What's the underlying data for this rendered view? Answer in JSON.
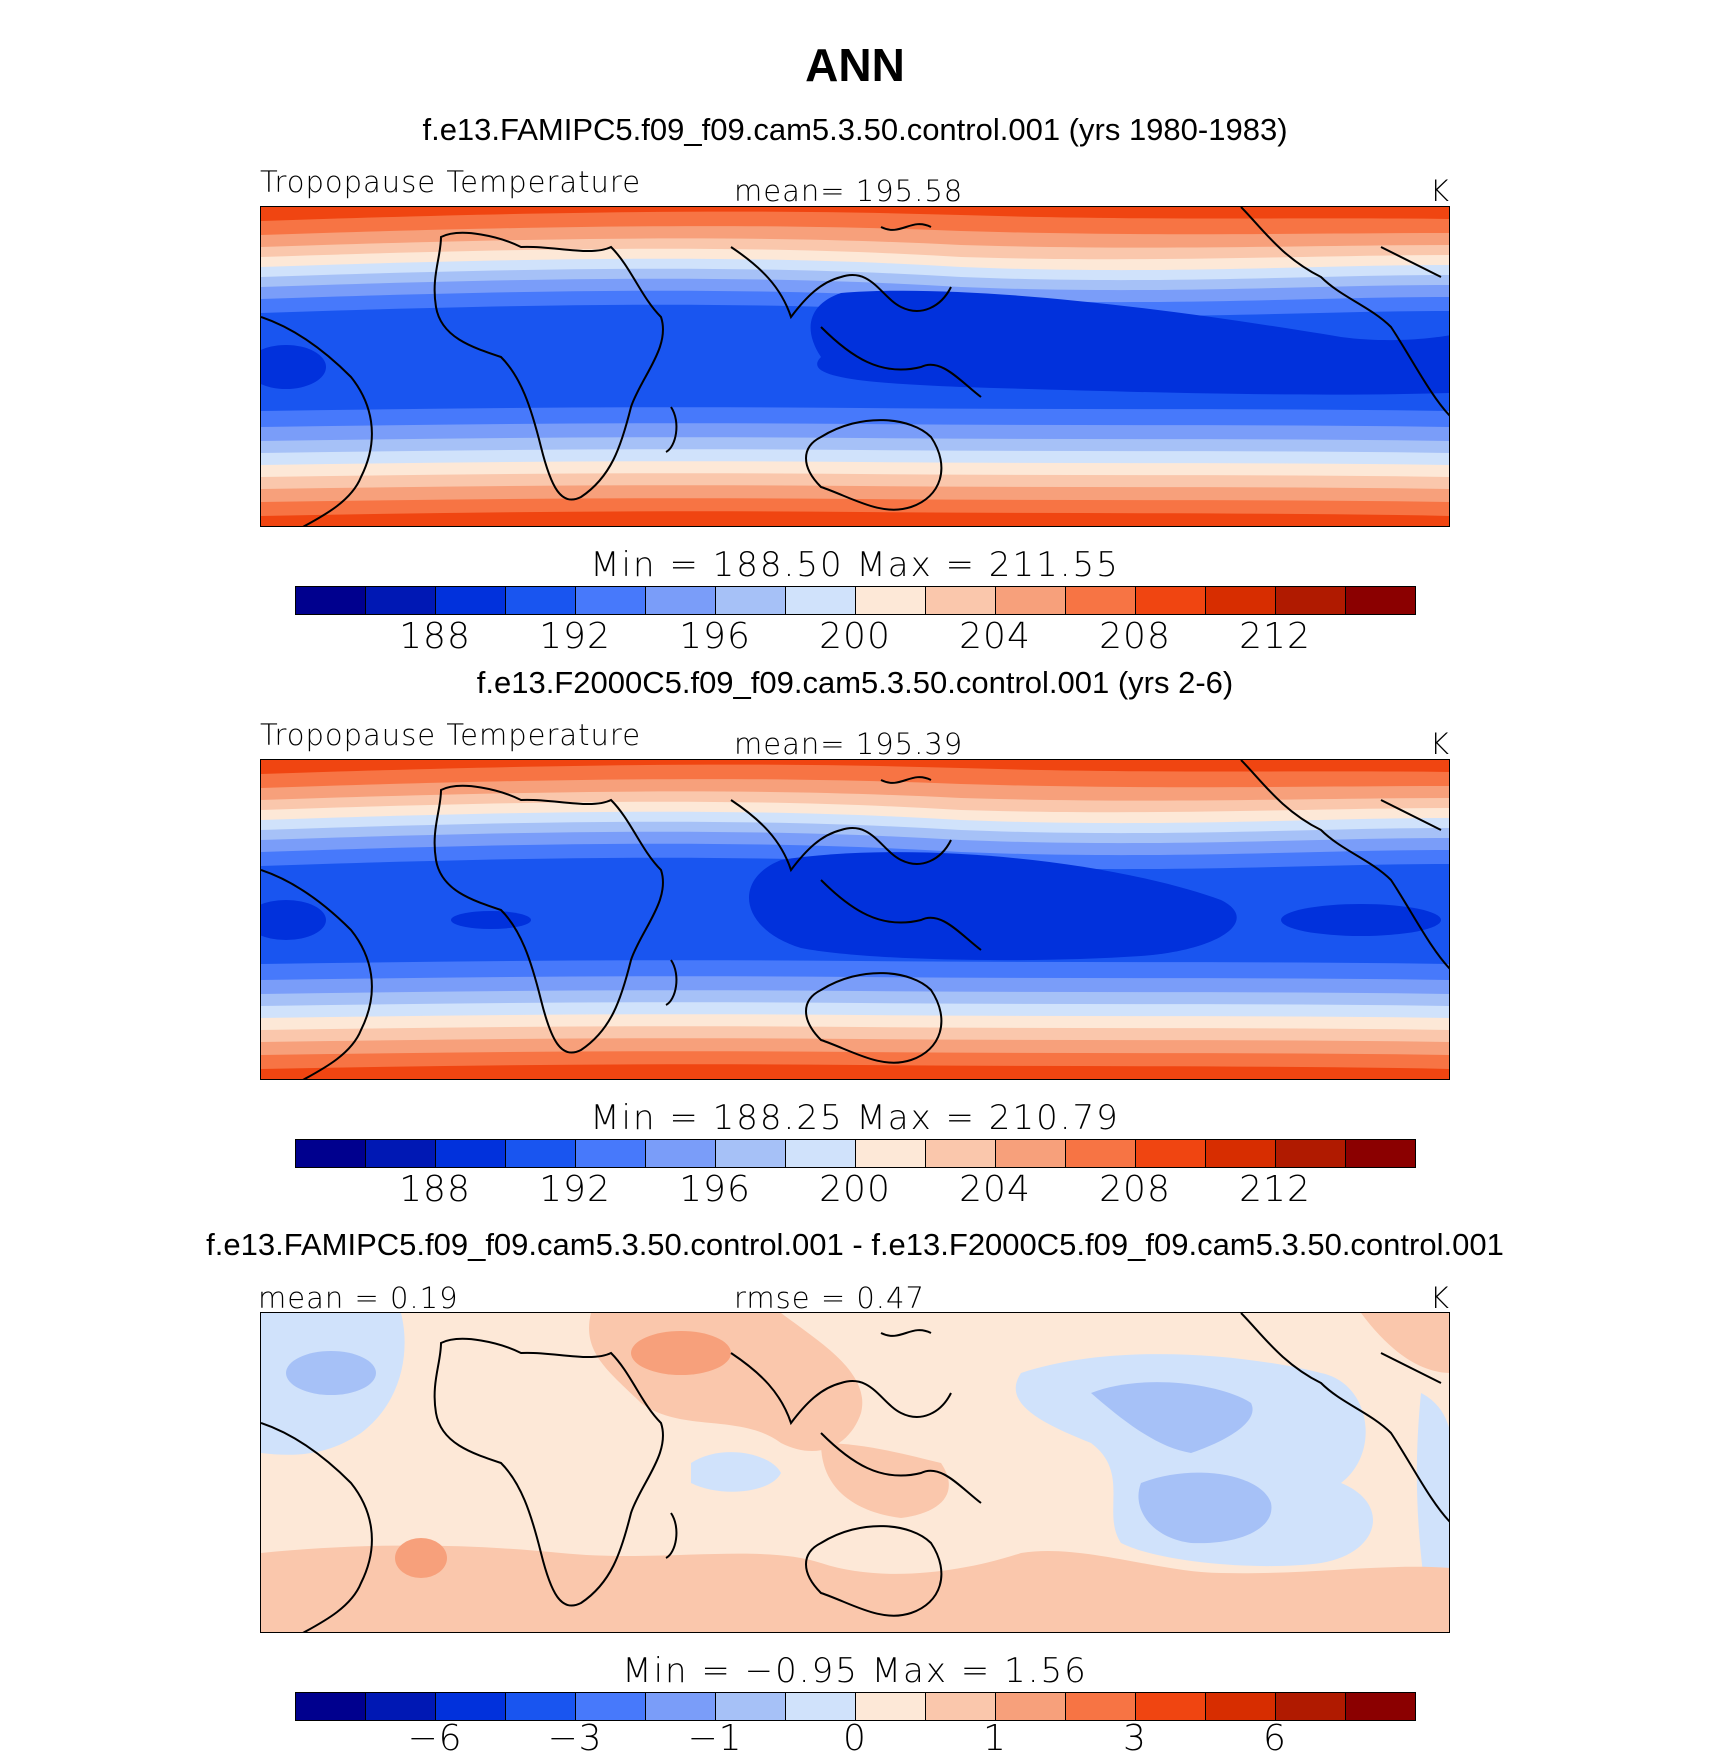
{
  "page_title": "ANN",
  "colors": {
    "palette": [
      "#00008e",
      "#0018b4",
      "#0131dc",
      "#1955f0",
      "#4779fb",
      "#7a9df9",
      "#a6c1f7",
      "#d0e2fb",
      "#fde8d7",
      "#fac7ac",
      "#f7a07b",
      "#f77444",
      "#f04511",
      "#d72d00",
      "#b01a00",
      "#8b0000"
    ],
    "coastline": "#000000"
  },
  "panels": [
    {
      "title": "f.e13.FAMIPC5.f09_f09.cam5.3.50.control.001 (yrs 1980-1983)",
      "left_label": "Tropopause Temperature",
      "center_label": "mean= 195.58",
      "units": "K",
      "min_max": "Min = 188.50 Max = 211.55",
      "colorbar_ticks": [
        "188",
        "192",
        "196",
        "200",
        "204",
        "208",
        "212"
      ]
    },
    {
      "title": "f.e13.F2000C5.f09_f09.cam5.3.50.control.001 (yrs 2-6)",
      "left_label": "Tropopause Temperature",
      "center_label": "mean= 195.39",
      "units": "K",
      "min_max": "Min = 188.25 Max = 210.79",
      "colorbar_ticks": [
        "188",
        "192",
        "196",
        "200",
        "204",
        "208",
        "212"
      ]
    },
    {
      "title": "f.e13.FAMIPC5.f09_f09.cam5.3.50.control.001 - f.e13.F2000C5.f09_f09.cam5.3.50.control.001",
      "left_label": "mean =    0.19",
      "center_label": "rmse =    0.47",
      "units": "K",
      "min_max": "Min =  −0.95 Max =    1.56",
      "colorbar_ticks": [
        "−6",
        "−3",
        "−1",
        "0",
        "1",
        "3",
        "6"
      ]
    }
  ]
}
